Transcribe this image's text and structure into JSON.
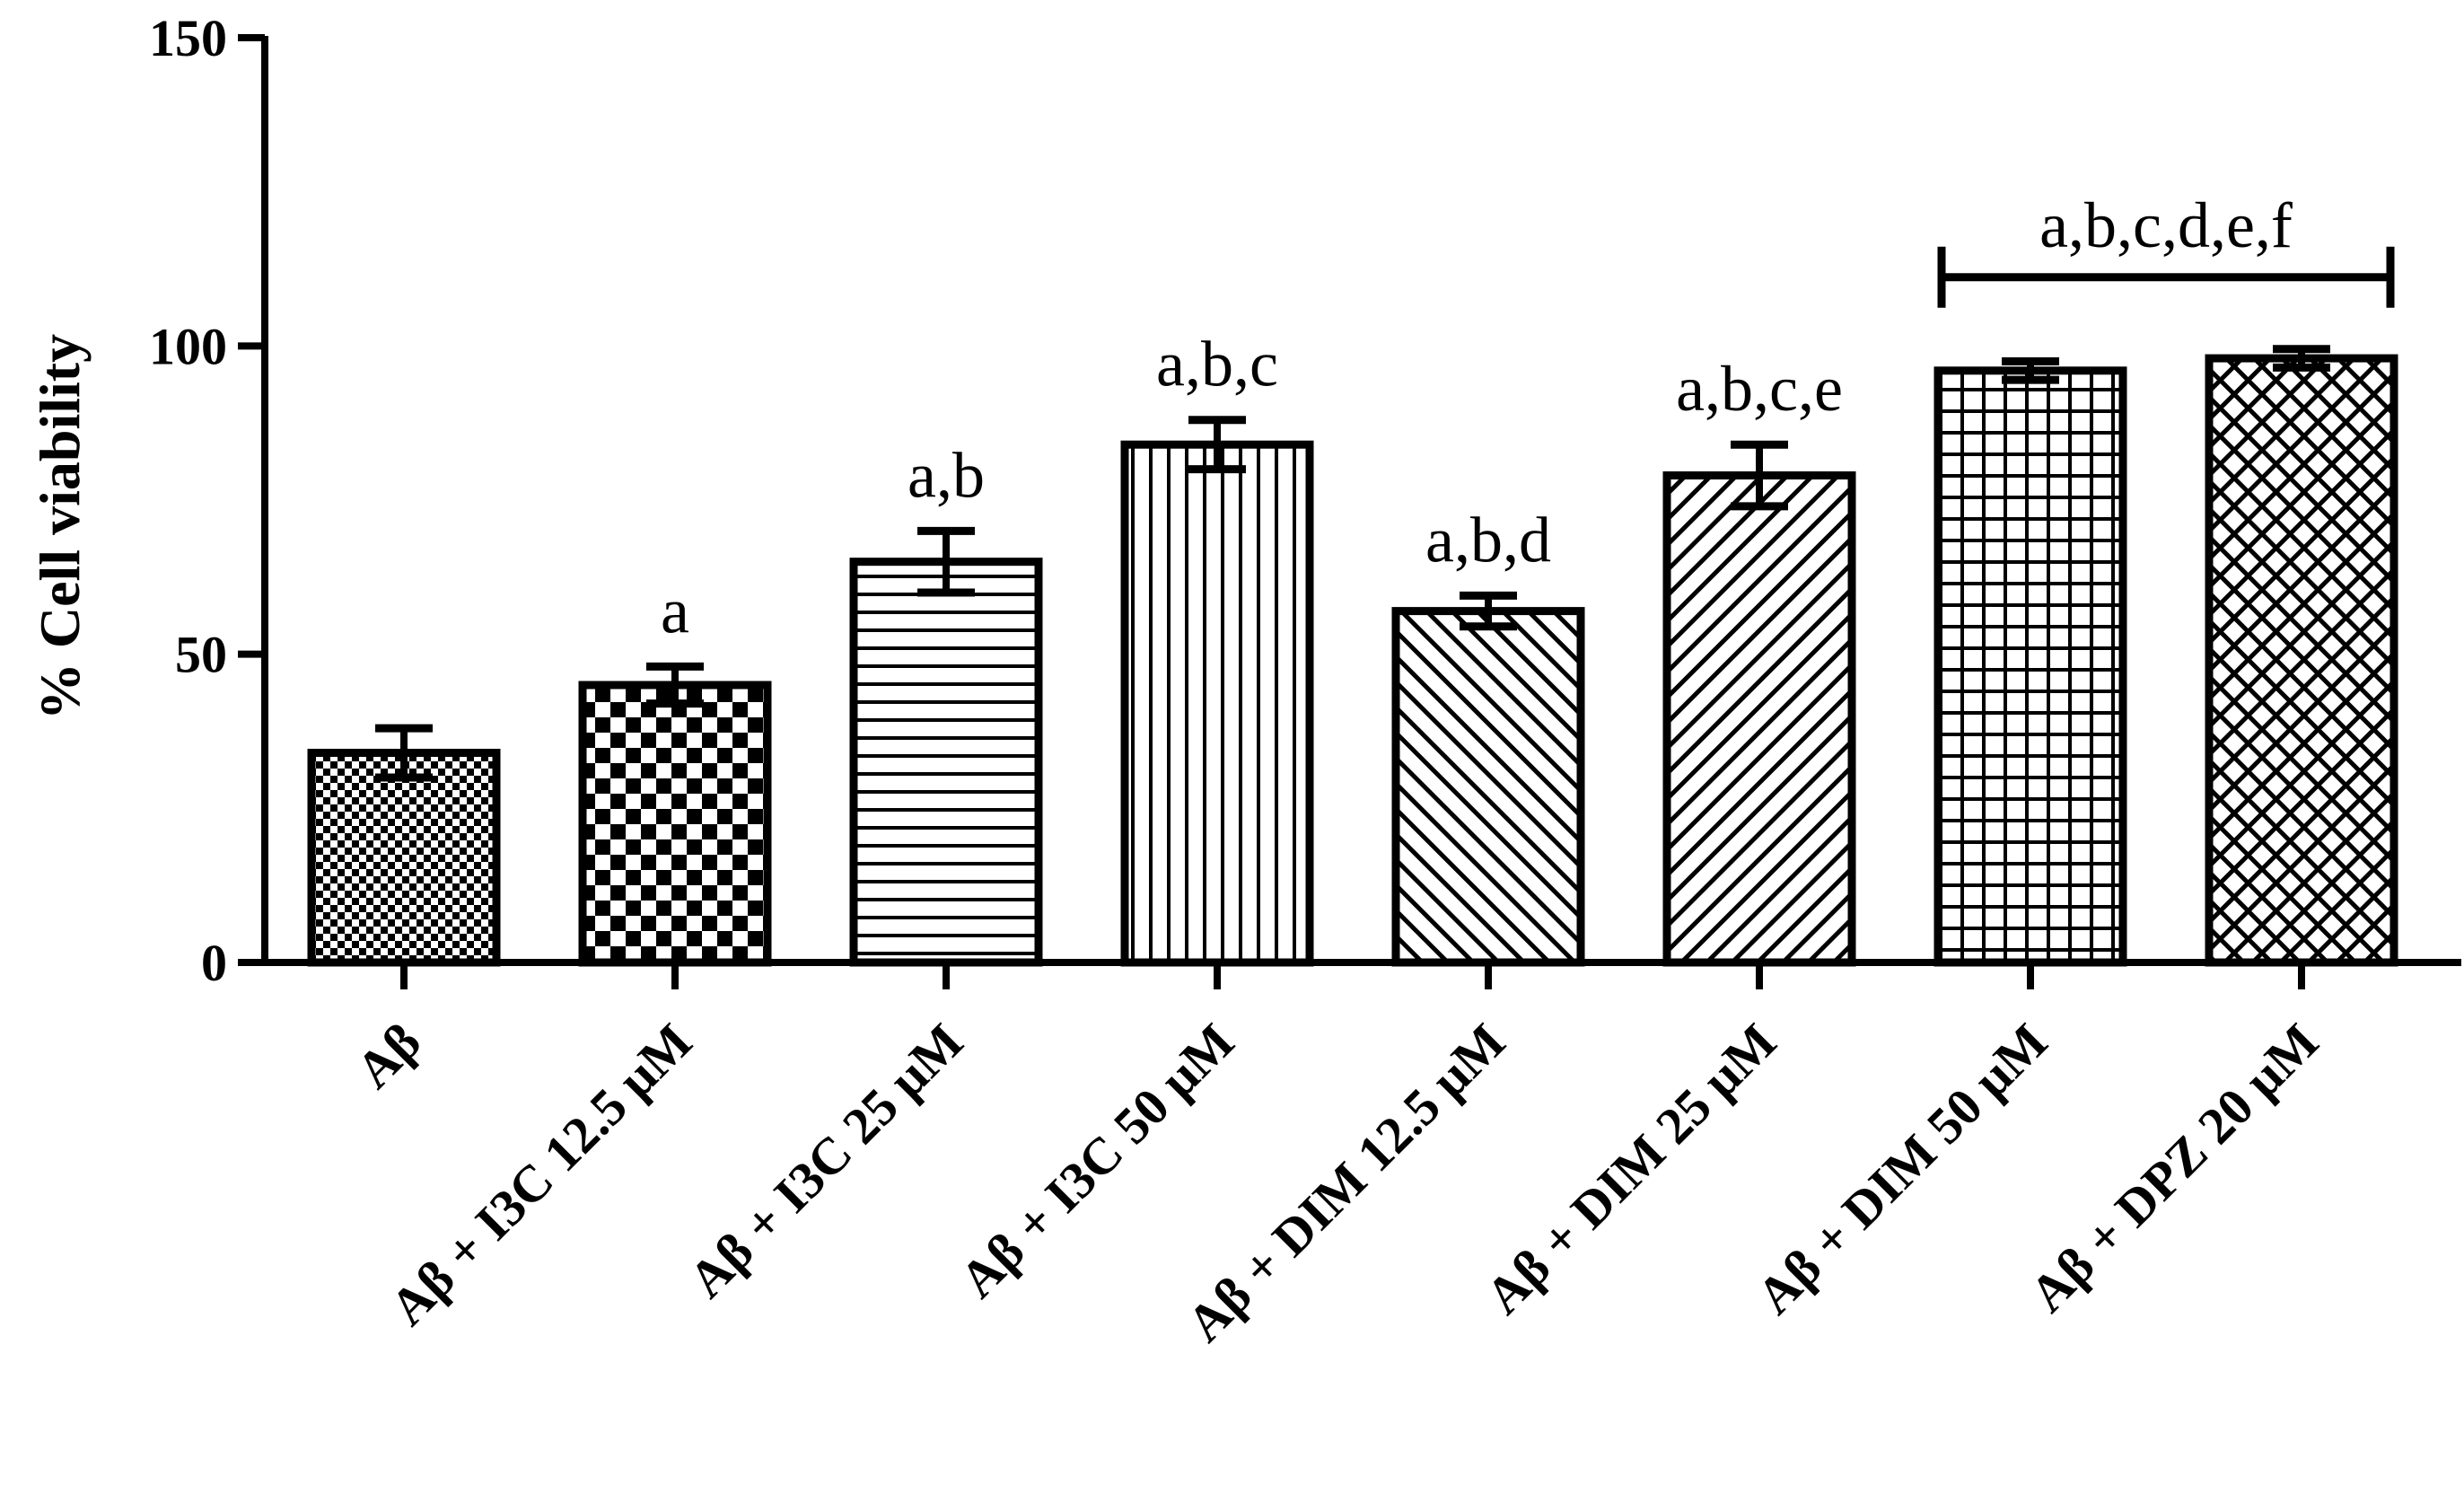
{
  "chart_data": {
    "type": "bar",
    "title": "",
    "xlabel": "",
    "ylabel": "% Cell viability",
    "ylim": [
      0,
      150
    ],
    "yticks": [
      0,
      50,
      100,
      150
    ],
    "grid": false,
    "legend": "none",
    "categories": [
      "Aβ",
      "Aβ + I3C 12.5 μM",
      "Aβ + I3C 25 μM",
      "Aβ + I3C 50 μM",
      "Aβ + DIM 12.5 μM",
      "Aβ + DIM 25 μM",
      "Aβ + DIM  50 μM",
      "Aβ + DPZ 20 μM"
    ],
    "values": [
      34,
      45,
      65,
      84,
      57,
      79,
      96,
      98
    ],
    "errors": [
      4,
      3,
      5,
      4,
      2.5,
      5,
      1.5,
      1.5
    ],
    "patterns": [
      "fine-checker",
      "checker",
      "horizontal",
      "vertical",
      "diagonal-up",
      "diagonal-down",
      "grid",
      "crosshatch"
    ],
    "annotations": [
      {
        "bar_index": 1,
        "text": "a"
      },
      {
        "bar_index": 2,
        "text": "a,b"
      },
      {
        "bar_index": 3,
        "text": "a,b,c"
      },
      {
        "bar_index": 4,
        "text": "a,b,d"
      },
      {
        "bar_index": 5,
        "text": "a,b,c,e"
      }
    ],
    "bracket": {
      "from_index": 6,
      "to_index": 7,
      "text": "a,b,c,d,e,f"
    },
    "colors": {
      "ink": "#000000",
      "background": "#ffffff"
    }
  }
}
